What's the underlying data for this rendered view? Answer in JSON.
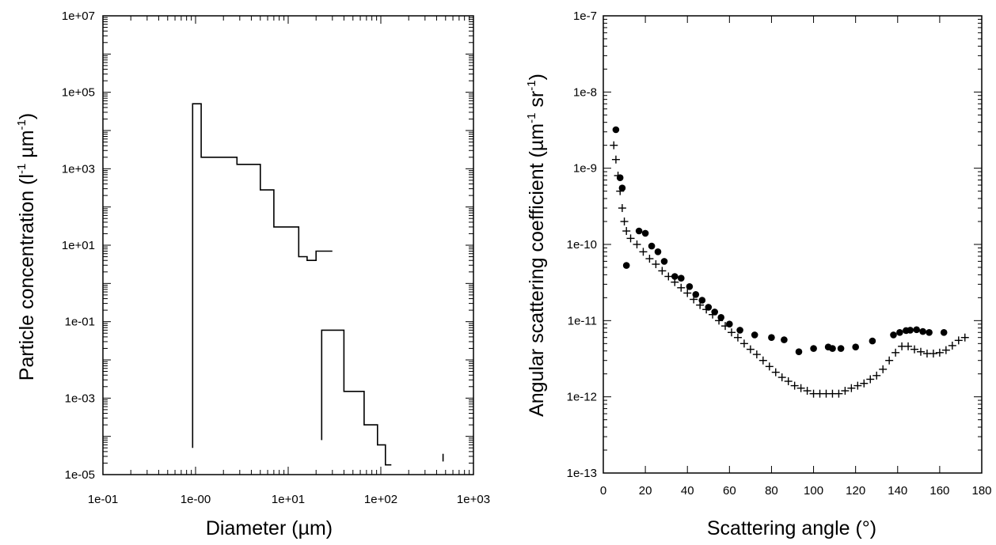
{
  "chart_data": [
    {
      "type": "line",
      "title": "",
      "xlabel_text": "Diameter (",
      "xlabel_unit": "µm",
      "xlabel_end": ")",
      "ylabel_text": "Particle concentration (l",
      "ylabel_sup1": "-1",
      "ylabel_mid": " µm",
      "ylabel_sup2": "-1",
      "ylabel_end": ")",
      "x_scale": "log",
      "y_scale": "log",
      "xlim": [
        0.1,
        1000
      ],
      "ylim": [
        1e-05,
        10000000
      ],
      "x_tick_values": [
        0.1,
        1,
        10,
        100,
        1000
      ],
      "x_tick_labels": [
        "1e-01",
        "1e-00",
        "1e+01",
        "1e+02",
        "1e+03"
      ],
      "y_tick_values": [
        1e-05,
        0.001,
        0.1,
        10,
        1000,
        100000,
        10000000
      ],
      "y_tick_labels": [
        "1e-05",
        "1e-03",
        "1e-01",
        "1e+01",
        "1e+03",
        "1e+05",
        "1e+07"
      ],
      "grid": false,
      "series": [
        {
          "points": [
            [
              0.93,
              5e-05
            ],
            [
              0.93,
              50000
            ],
            [
              1.15,
              50000
            ],
            [
              1.15,
              2000
            ],
            [
              2.8,
              2000
            ],
            [
              2.8,
              1300
            ],
            [
              5.0,
              1300
            ],
            [
              5.0,
              280
            ],
            [
              7.0,
              280
            ],
            [
              7.0,
              30
            ],
            [
              13.0,
              30
            ],
            [
              13.0,
              5
            ],
            [
              16.0,
              5
            ],
            [
              16.0,
              4
            ],
            [
              20.0,
              4
            ],
            [
              20.0,
              7
            ],
            [
              30.0,
              7
            ]
          ]
        },
        {
          "points": [
            [
              23.0,
              8e-05
            ],
            [
              23.0,
              0.06
            ],
            [
              40.0,
              0.06
            ],
            [
              40.0,
              0.0015
            ],
            [
              66.0,
              0.0015
            ],
            [
              66.0,
              0.0002
            ],
            [
              92.0,
              0.0002
            ],
            [
              92.0,
              6e-05
            ],
            [
              112.0,
              6e-05
            ],
            [
              112.0,
              1.8e-05
            ],
            [
              130.0,
              1.8e-05
            ]
          ]
        },
        {
          "points": [
            [
              470.0,
              2.2e-05
            ],
            [
              470.0,
              3.5e-05
            ]
          ]
        }
      ]
    },
    {
      "type": "scatter",
      "title": "",
      "xlabel_text": "Scattering angle (°)",
      "ylabel_text": "Angular scattering coefficient (µm",
      "ylabel_sup1": "-1",
      "ylabel_mid": " sr",
      "ylabel_sup2": "-1",
      "ylabel_end": ")",
      "x_scale": "linear",
      "y_scale": "log",
      "xlim": [
        0,
        180
      ],
      "ylim": [
        1e-13,
        1e-07
      ],
      "x_tick_values": [
        0,
        20,
        40,
        60,
        80,
        100,
        120,
        140,
        160,
        180
      ],
      "x_tick_labels": [
        "0",
        "20",
        "40",
        "60",
        "80",
        "100",
        "120",
        "140",
        "160",
        "180"
      ],
      "y_tick_values": [
        1e-13,
        1e-12,
        1e-11,
        1e-10,
        1e-09,
        1e-08,
        1e-07
      ],
      "y_tick_labels": [
        "1e-13",
        "1e-12",
        "1e-11",
        "1e-10",
        "1e-9",
        "1e-8",
        "1e-7"
      ],
      "grid": false,
      "series": [
        {
          "marker": "circle",
          "x": [
            6,
            8,
            9,
            11,
            17,
            20,
            23,
            26,
            29,
            34,
            37,
            41,
            44,
            47,
            50,
            53,
            56,
            60,
            65,
            72,
            80,
            86,
            93,
            100,
            107,
            109,
            113,
            120,
            128,
            138,
            141,
            144,
            146,
            149,
            152,
            155,
            162
          ],
          "y": [
            3.2e-09,
            7.5e-10,
            5.5e-10,
            5.3e-11,
            1.5e-10,
            1.4e-10,
            9.5e-11,
            8e-11,
            6e-11,
            3.8e-11,
            3.6e-11,
            2.8e-11,
            2.2e-11,
            1.85e-11,
            1.5e-11,
            1.3e-11,
            1.1e-11,
            9e-12,
            7.5e-12,
            6.5e-12,
            6e-12,
            5.6e-12,
            3.9e-12,
            4.3e-12,
            4.5e-12,
            4.3e-12,
            4.3e-12,
            4.5e-12,
            5.4e-12,
            6.5e-12,
            7e-12,
            7.4e-12,
            7.5e-12,
            7.6e-12,
            7.2e-12,
            7e-12,
            7e-12
          ]
        },
        {
          "marker": "plus",
          "x": [
            5,
            6,
            7,
            8,
            9,
            10,
            11,
            13,
            16,
            19,
            22,
            25,
            28,
            31,
            34,
            37,
            40,
            43,
            46,
            49,
            52,
            55,
            58,
            61,
            64,
            67,
            70,
            73,
            76,
            79,
            82,
            85,
            88,
            91,
            94,
            97,
            100,
            103,
            106,
            109,
            112,
            115,
            118,
            121,
            124,
            127,
            130,
            133,
            136,
            139,
            142,
            145,
            148,
            151,
            154,
            157,
            160,
            163,
            166,
            169,
            172
          ],
          "y": [
            2e-09,
            1.3e-09,
            8e-10,
            5e-10,
            3e-10,
            2e-10,
            1.5e-10,
            1.2e-10,
            1e-10,
            8e-11,
            6.5e-11,
            5.5e-11,
            4.5e-11,
            3.8e-11,
            3.2e-11,
            2.7e-11,
            2.3e-11,
            1.9e-11,
            1.6e-11,
            1.4e-11,
            1.2e-11,
            1e-11,
            8.5e-12,
            7e-12,
            6e-12,
            5e-12,
            4.2e-12,
            3.6e-12,
            3e-12,
            2.5e-12,
            2.1e-12,
            1.8e-12,
            1.6e-12,
            1.4e-12,
            1.3e-12,
            1.2e-12,
            1.1e-12,
            1.1e-12,
            1.1e-12,
            1.1e-12,
            1.1e-12,
            1.2e-12,
            1.3e-12,
            1.4e-12,
            1.5e-12,
            1.7e-12,
            1.9e-12,
            2.3e-12,
            3e-12,
            3.8e-12,
            4.6e-12,
            4.6e-12,
            4.2e-12,
            3.9e-12,
            3.7e-12,
            3.7e-12,
            3.8e-12,
            4.1e-12,
            4.7e-12,
            5.5e-12,
            6e-12
          ]
        }
      ]
    }
  ]
}
